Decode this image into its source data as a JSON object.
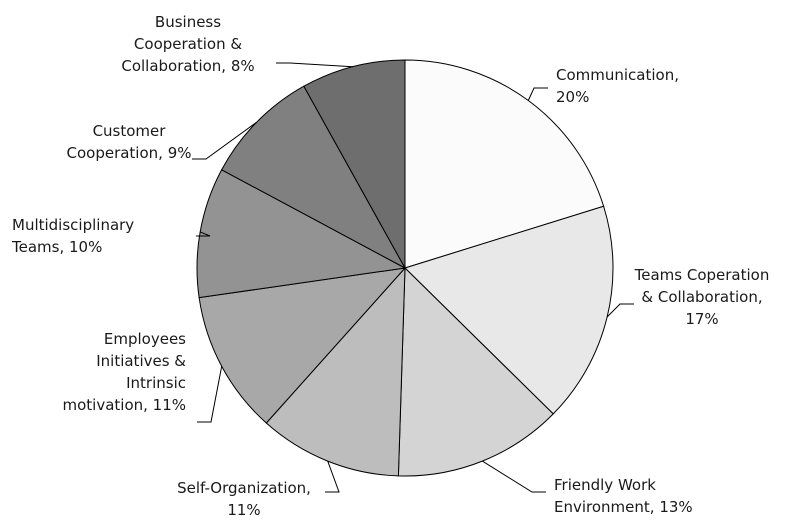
{
  "chart_data": {
    "type": "pie",
    "title": "",
    "start_angle_deg": 0,
    "direction": "clockwise",
    "slices": [
      {
        "label": "Communication",
        "value": 20,
        "value_label": "20%",
        "color": "#fbfbfb"
      },
      {
        "label": "Teams Coperation & Collaboration",
        "value": 17,
        "value_label": "17%",
        "color": "#e8e8e8"
      },
      {
        "label": "Friendly Work Environment",
        "value": 13,
        "value_label": "13%",
        "color": "#d4d4d4"
      },
      {
        "label": "Self-Organization",
        "value": 11,
        "value_label": "11%",
        "color": "#bdbdbd"
      },
      {
        "label": "Employees Initiatives & Intrinsic motivation",
        "value": 11,
        "value_label": "11%",
        "color": "#a8a8a8"
      },
      {
        "label": "Multidisciplinary Teams",
        "value": 10,
        "value_label": "10%",
        "color": "#939393"
      },
      {
        "label": "Customer Cooperation",
        "value": 9,
        "value_label": "9%",
        "color": "#808080"
      },
      {
        "label": "Business Cooperation & Collaboration",
        "value": 8,
        "value_label": "8%",
        "color": "#6e6e6e"
      }
    ]
  },
  "labels": [
    {
      "lines": [
        "Communication,",
        "20%"
      ]
    },
    {
      "lines": [
        "Teams Coperation",
        "& Collaboration,",
        "17%"
      ]
    },
    {
      "lines": [
        "Friendly Work",
        "Environment, 13%"
      ]
    },
    {
      "lines": [
        "Self-Organization,",
        "11%"
      ]
    },
    {
      "lines": [
        "Employees",
        "Initiatives &",
        "Intrinsic",
        "motivation, 11%"
      ]
    },
    {
      "lines": [
        "Multidisciplinary",
        "Teams, 10%"
      ]
    },
    {
      "lines": [
        "Customer",
        "Cooperation, 9%"
      ]
    },
    {
      "lines": [
        "Business",
        "Cooperation &",
        "Collaboration, 8%"
      ]
    }
  ]
}
